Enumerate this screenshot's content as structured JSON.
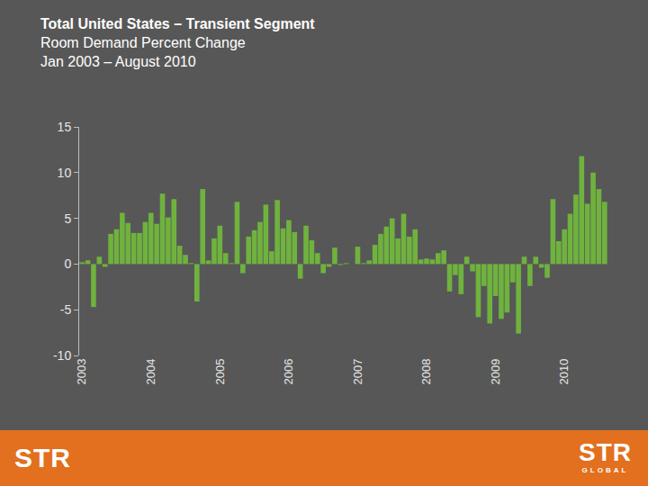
{
  "chart_data": {
    "type": "bar",
    "title": "Total United States – Transient Segment",
    "subtitle": [
      "Room Demand Percent Change",
      "Jan 2003 – August 2010"
    ],
    "categories": [
      "2003",
      null,
      null,
      null,
      null,
      null,
      null,
      null,
      null,
      null,
      null,
      null,
      "2004",
      null,
      null,
      null,
      null,
      null,
      null,
      null,
      null,
      null,
      null,
      null,
      "2005",
      null,
      null,
      null,
      null,
      null,
      null,
      null,
      null,
      null,
      null,
      null,
      "2006",
      null,
      null,
      null,
      null,
      null,
      null,
      null,
      null,
      null,
      null,
      null,
      "2007",
      null,
      null,
      null,
      null,
      null,
      null,
      null,
      null,
      null,
      null,
      null,
      "2008",
      null,
      null,
      null,
      null,
      null,
      null,
      null,
      null,
      null,
      null,
      null,
      "2009",
      null,
      null,
      null,
      null,
      null,
      null,
      null,
      null,
      null,
      null,
      null,
      "2010",
      null,
      null,
      null,
      null,
      null,
      null,
      null
    ],
    "values": [
      0.2,
      0.4,
      -4.7,
      0.8,
      -0.3,
      3.3,
      3.8,
      5.6,
      4.5,
      3.4,
      3.4,
      4.6,
      5.6,
      4.4,
      7.7,
      5.1,
      7.1,
      2.0,
      1.0,
      0.1,
      -4.1,
      8.2,
      0.4,
      2.8,
      4.2,
      1.2,
      0.1,
      6.8,
      -1.0,
      3.0,
      3.7,
      4.6,
      6.5,
      1.4,
      7.0,
      3.9,
      4.8,
      3.5,
      -1.6,
      4.2,
      2.6,
      1.2,
      -1.0,
      -0.3,
      1.8,
      -0.1,
      0.1,
      0.0,
      1.9,
      0.1,
      0.4,
      2.1,
      3.3,
      4.1,
      5.0,
      2.8,
      5.5,
      3.0,
      3.8,
      0.5,
      0.6,
      0.5,
      1.2,
      1.5,
      -3.0,
      -1.2,
      -3.3,
      0.8,
      -0.8,
      -5.8,
      -2.4,
      -6.5,
      -3.5,
      -6.0,
      -5.3,
      -2.0,
      -7.6,
      0.8,
      -2.4,
      0.8,
      -0.4,
      -1.5,
      7.1,
      2.5,
      3.8,
      5.5,
      7.6,
      11.8,
      6.6,
      10.0,
      8.2,
      6.8
    ],
    "color": "#6fb23e",
    "ylim": [
      -10,
      15
    ],
    "yticks": [
      -10,
      -5,
      0,
      5,
      10,
      15
    ],
    "grid": false
  },
  "footer": {
    "left_logo": "STR",
    "right_logo": "STR",
    "right_logo_sub": "GLOBAL"
  }
}
